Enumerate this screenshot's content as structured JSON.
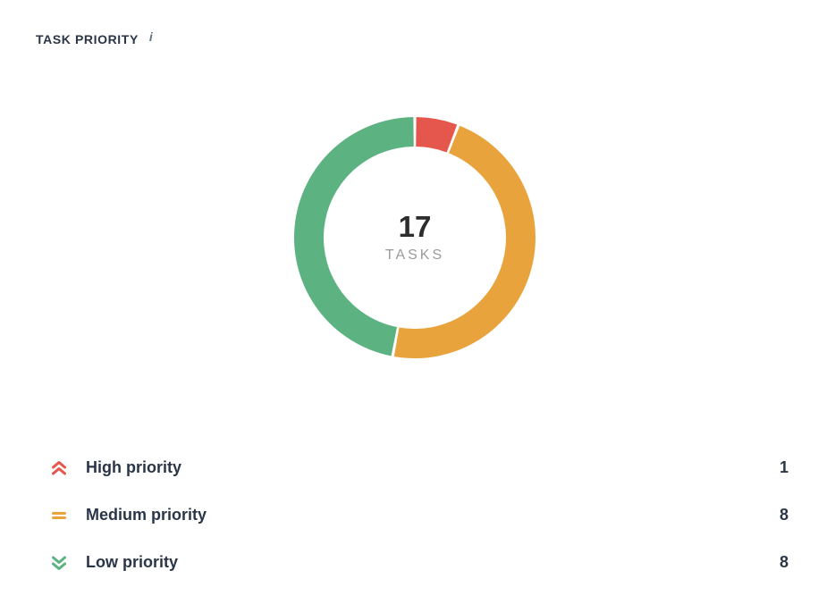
{
  "header": {
    "title": "TASK PRIORITY",
    "info_icon_glyph": "i"
  },
  "donut_center": {
    "value": "17",
    "label": "TASKS"
  },
  "legend": {
    "items": [
      {
        "icon": "chevrons-up-icon",
        "label": "High priority",
        "value": "1",
        "color": "#E5564C"
      },
      {
        "icon": "equals-icon",
        "label": "Medium priority",
        "value": "8",
        "color": "#E9A33D"
      },
      {
        "icon": "chevrons-down-icon",
        "label": "Low priority",
        "value": "8",
        "color": "#5CB381"
      }
    ]
  },
  "chart_data": {
    "type": "pie",
    "subtype": "donut",
    "title": "TASK PRIORITY",
    "categories": [
      "High priority",
      "Medium priority",
      "Low priority"
    ],
    "values": [
      1,
      8,
      8
    ],
    "total": 17,
    "colors": [
      "#E5564C",
      "#E9A33D",
      "#5CB381"
    ],
    "center_value": "17",
    "center_label": "TASKS",
    "start_angle_deg": 0,
    "direction": "clockwise",
    "legend_position": "bottom",
    "outer_radius": 135,
    "inner_radius": 102,
    "pad_angle_deg": 0.7
  }
}
